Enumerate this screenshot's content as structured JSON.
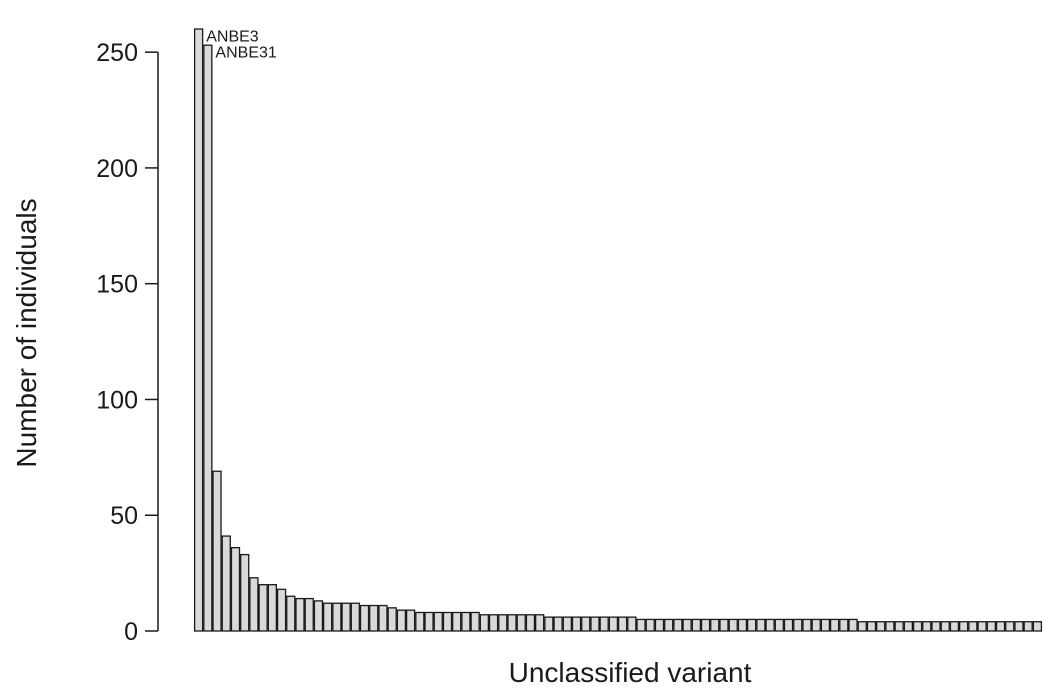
{
  "chart_data": {
    "type": "bar",
    "xlabel": "Unclassified variant",
    "ylabel": "Number of individuals",
    "ylim": [
      0,
      260
    ],
    "yticks": [
      0,
      50,
      100,
      150,
      200,
      250
    ],
    "bar_fill": "#d9d9d9",
    "bar_stroke": "#1a1a1a",
    "grid": false,
    "values": [
      260,
      253,
      69,
      41,
      36,
      33,
      23,
      20,
      20,
      18,
      15,
      14,
      14,
      13,
      12,
      12,
      12,
      12,
      11,
      11,
      11,
      10,
      9,
      9,
      8,
      8,
      8,
      8,
      8,
      8,
      8,
      7,
      7,
      7,
      7,
      7,
      7,
      7,
      6,
      6,
      6,
      6,
      6,
      6,
      6,
      6,
      6,
      6,
      5,
      5,
      5,
      5,
      5,
      5,
      5,
      5,
      5,
      5,
      5,
      5,
      5,
      5,
      5,
      5,
      5,
      5,
      5,
      5,
      5,
      5,
      5,
      5,
      4,
      4,
      4,
      4,
      4,
      4,
      4,
      4,
      4,
      4,
      4,
      4,
      4,
      4,
      4,
      4,
      4,
      4,
      4,
      4
    ],
    "annotations": [
      {
        "index": 0,
        "text": "ANBE3"
      },
      {
        "index": 1,
        "text": "ANBE31"
      }
    ]
  }
}
